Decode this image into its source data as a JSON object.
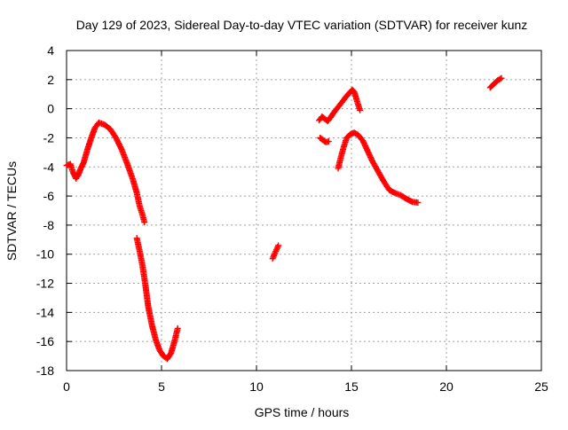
{
  "chart_data": {
    "type": "scatter",
    "title": "Day 129 of 2023, Sidereal Day-to-day VTEC variation (SDTVAR) for receiver kunz",
    "xlabel": "GPS time / hours",
    "ylabel": "SDTVAR / TECUs",
    "xlim": [
      0,
      25
    ],
    "ylim": [
      -18,
      4
    ],
    "xticks": [
      0,
      5,
      10,
      15,
      20,
      25
    ],
    "yticks": [
      -18,
      -16,
      -14,
      -12,
      -10,
      -8,
      -6,
      -4,
      -2,
      0,
      2,
      4
    ],
    "xtick_labels": [
      "0",
      "5",
      "10",
      "15",
      "20",
      "25"
    ],
    "ytick_labels": [
      "-18",
      "-16",
      "-14",
      "-12",
      "-10",
      "-8",
      "-6",
      "-4",
      "-2",
      "0",
      "2",
      "4"
    ],
    "grid": true,
    "marker": "plus",
    "marker_color": "#ff0000",
    "series": [
      {
        "name": "segment-1",
        "x": [
          0.0,
          0.2,
          0.35,
          0.5,
          0.6,
          0.75,
          0.9,
          1.1,
          1.3,
          1.5,
          1.7,
          2.0,
          2.3,
          2.6,
          2.9,
          3.2,
          3.5,
          3.7,
          3.85,
          4.0,
          4.1
        ],
        "y": [
          -3.9,
          -3.8,
          -4.4,
          -4.8,
          -4.6,
          -4.1,
          -3.7,
          -2.8,
          -2.0,
          -1.3,
          -0.95,
          -1.1,
          -1.4,
          -2.0,
          -2.8,
          -3.8,
          -4.9,
          -5.8,
          -6.7,
          -7.3,
          -7.8
        ]
      },
      {
        "name": "segment-2",
        "x": [
          3.7,
          3.85,
          4.0,
          4.15,
          4.3,
          4.5,
          4.7,
          4.9,
          5.1,
          5.3,
          5.5,
          5.7,
          5.85
        ],
        "y": [
          -8.9,
          -9.8,
          -10.8,
          -12.1,
          -13.6,
          -14.9,
          -15.9,
          -16.6,
          -17.0,
          -17.2,
          -16.8,
          -15.9,
          -15.1
        ]
      },
      {
        "name": "segment-3",
        "x": [
          10.85,
          10.95,
          11.05,
          11.15
        ],
        "y": [
          -10.3,
          -10.0,
          -9.7,
          -9.4
        ]
      },
      {
        "name": "segment-4",
        "x": [
          13.3,
          13.45,
          13.6,
          13.75,
          13.9,
          14.05,
          14.2,
          14.35,
          14.5,
          14.7,
          14.9,
          15.05,
          15.15,
          15.3,
          15.45
        ],
        "y": [
          -0.8,
          -0.55,
          -0.7,
          -0.85,
          -0.6,
          -0.3,
          -0.05,
          0.2,
          0.45,
          0.8,
          1.1,
          1.3,
          1.15,
          0.5,
          -0.1
        ]
      },
      {
        "name": "segment-5",
        "x": [
          13.35,
          13.5,
          13.65,
          13.8
        ],
        "y": [
          -2.0,
          -2.15,
          -2.3,
          -2.25
        ]
      },
      {
        "name": "segment-6",
        "x": [
          14.3,
          14.45,
          14.6,
          14.75,
          14.95,
          15.15,
          15.35,
          15.6,
          15.85,
          16.1,
          16.4,
          16.7,
          17.0,
          17.3,
          17.6,
          17.9,
          18.2,
          18.5
        ],
        "y": [
          -4.1,
          -3.3,
          -2.6,
          -2.0,
          -1.75,
          -1.65,
          -1.8,
          -2.2,
          -2.9,
          -3.6,
          -4.3,
          -5.0,
          -5.6,
          -5.8,
          -5.95,
          -6.2,
          -6.4,
          -6.45
        ]
      },
      {
        "name": "segment-7",
        "x": [
          22.3,
          22.5,
          22.7,
          22.9
        ],
        "y": [
          1.45,
          1.7,
          1.95,
          2.1
        ]
      }
    ]
  }
}
